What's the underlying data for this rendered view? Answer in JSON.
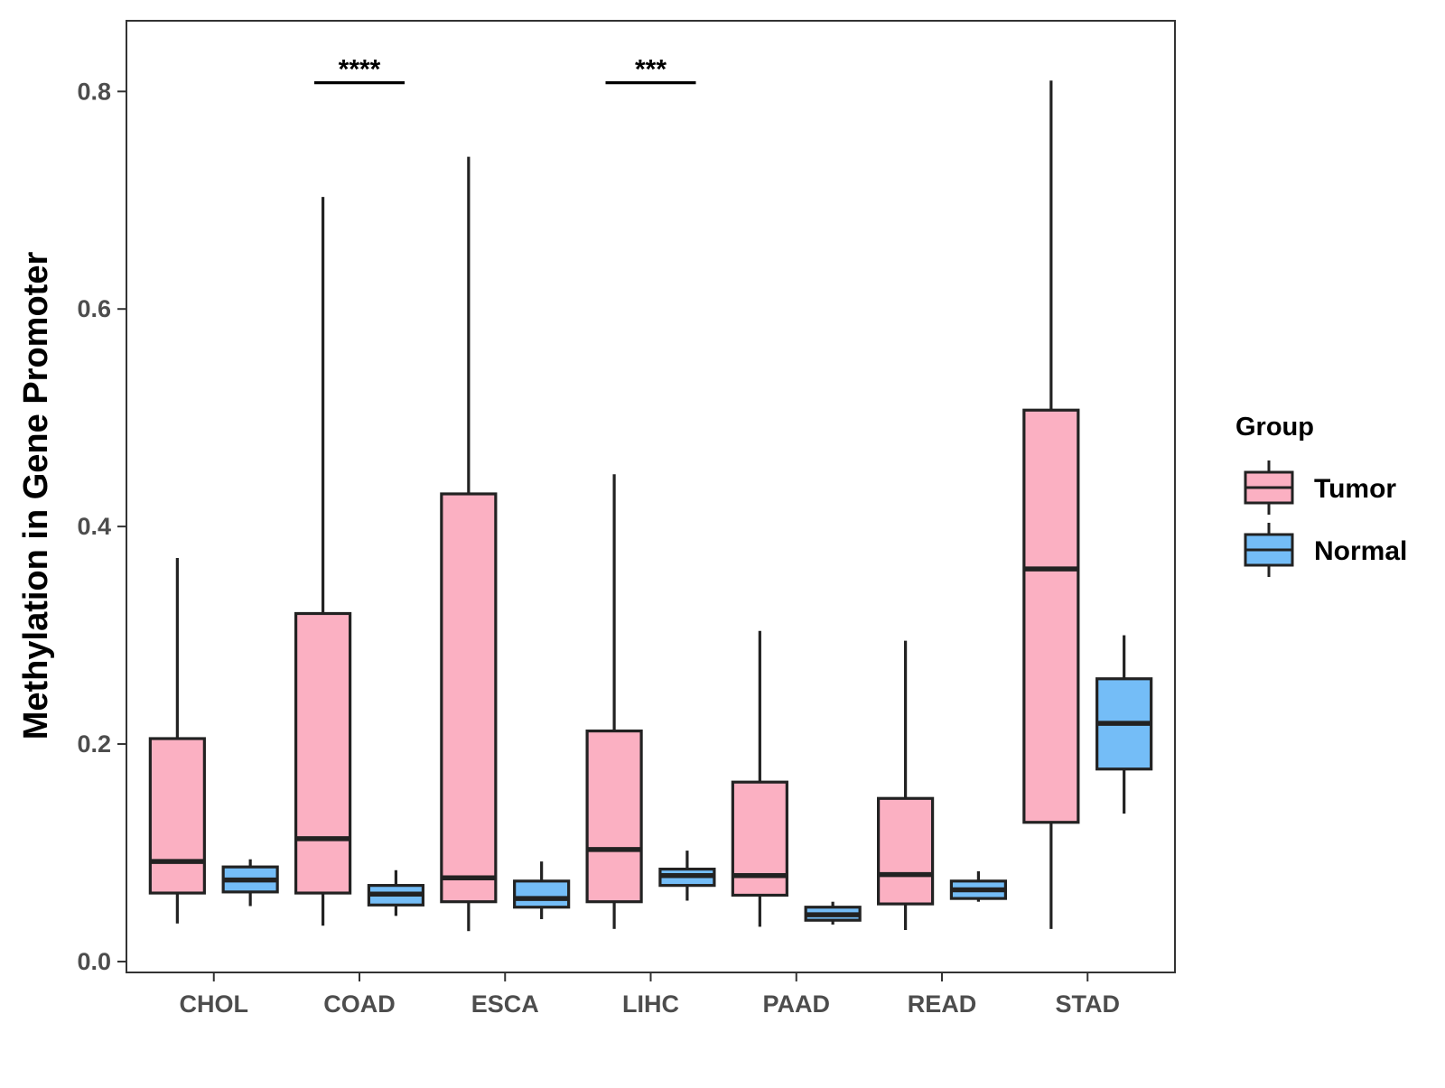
{
  "chart_data": {
    "type": "boxplot",
    "title": "",
    "xlabel": "",
    "ylabel": "Methylation in Gene Promoter",
    "ylim": [
      -0.01,
      0.865
    ],
    "y_ticks": [
      0.0,
      0.2,
      0.4,
      0.6,
      0.8
    ],
    "y_tick_labels": [
      "0.0",
      "0.2",
      "0.4",
      "0.6",
      "0.8"
    ],
    "categories": [
      "CHOL",
      "COAD",
      "ESCA",
      "LIHC",
      "PAAD",
      "READ",
      "STAD"
    ],
    "legend": {
      "title": "Group",
      "position": "right",
      "entries": [
        "Tumor",
        "Normal"
      ]
    },
    "colors": {
      "Tumor": "#FBB0C2",
      "Normal": "#74BDF7",
      "outline": "#222222"
    },
    "series": [
      {
        "name": "Tumor",
        "boxes": [
          {
            "category": "CHOL",
            "min": 0.035,
            "q1": 0.063,
            "median": 0.092,
            "q3": 0.205,
            "max": 0.371
          },
          {
            "category": "COAD",
            "min": 0.033,
            "q1": 0.063,
            "median": 0.113,
            "q3": 0.32,
            "max": 0.703
          },
          {
            "category": "ESCA",
            "min": 0.028,
            "q1": 0.055,
            "median": 0.077,
            "q3": 0.43,
            "max": 0.74
          },
          {
            "category": "LIHC",
            "min": 0.03,
            "q1": 0.055,
            "median": 0.103,
            "q3": 0.212,
            "max": 0.448
          },
          {
            "category": "PAAD",
            "min": 0.032,
            "q1": 0.061,
            "median": 0.079,
            "q3": 0.165,
            "max": 0.304
          },
          {
            "category": "READ",
            "min": 0.029,
            "q1": 0.053,
            "median": 0.08,
            "q3": 0.15,
            "max": 0.295
          },
          {
            "category": "STAD",
            "min": 0.03,
            "q1": 0.128,
            "median": 0.361,
            "q3": 0.507,
            "max": 0.81
          }
        ]
      },
      {
        "name": "Normal",
        "boxes": [
          {
            "category": "CHOL",
            "min": 0.051,
            "q1": 0.064,
            "median": 0.075,
            "q3": 0.087,
            "max": 0.094
          },
          {
            "category": "COAD",
            "min": 0.042,
            "q1": 0.052,
            "median": 0.062,
            "q3": 0.07,
            "max": 0.084
          },
          {
            "category": "ESCA",
            "min": 0.039,
            "q1": 0.05,
            "median": 0.058,
            "q3": 0.074,
            "max": 0.092
          },
          {
            "category": "LIHC",
            "min": 0.056,
            "q1": 0.07,
            "median": 0.079,
            "q3": 0.085,
            "max": 0.102
          },
          {
            "category": "PAAD",
            "min": 0.034,
            "q1": 0.038,
            "median": 0.043,
            "q3": 0.05,
            "max": 0.055
          },
          {
            "category": "READ",
            "min": 0.055,
            "q1": 0.058,
            "median": 0.066,
            "q3": 0.074,
            "max": 0.083
          },
          {
            "category": "STAD",
            "min": 0.136,
            "q1": 0.177,
            "median": 0.219,
            "q3": 0.26,
            "max": 0.3
          }
        ]
      }
    ],
    "annotations": [
      {
        "category": "COAD",
        "text": "****",
        "y": 0.808
      },
      {
        "category": "LIHC",
        "text": "***",
        "y": 0.808
      }
    ]
  }
}
